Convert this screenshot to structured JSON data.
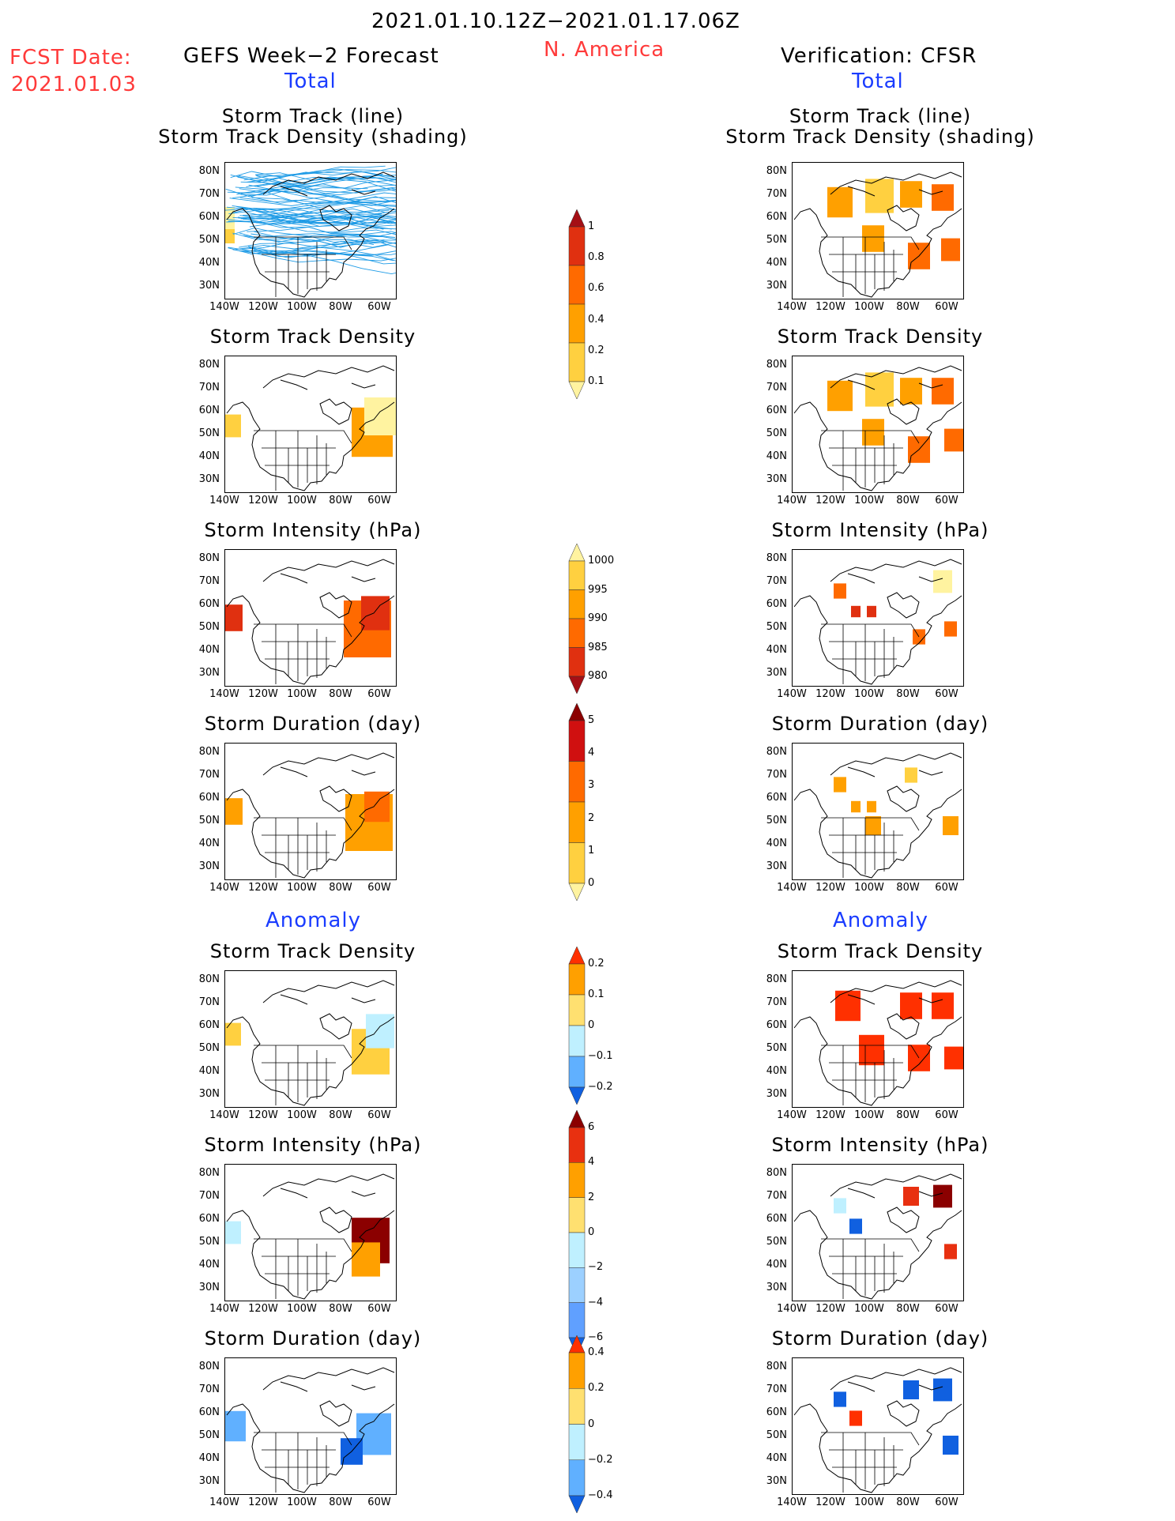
{
  "header": {
    "period": "2021.01.10.12Z−2021.01.17.06Z",
    "region": "N. America",
    "fcst_label": "FCST Date:",
    "fcst_date": "2021.01.03",
    "left_title": "GEFS Week−2 Forecast",
    "right_title": "Verification: CFSR",
    "total_label": "Total",
    "anomaly_label": "Anomaly"
  },
  "panel_titles": {
    "track_line": "Storm Track (line)",
    "track_shading": "Storm Track Density (shading)",
    "density": "Storm Track Density",
    "intensity": "Storm Intensity (hPa)",
    "duration": "Storm Duration (day)"
  },
  "axes": {
    "lat_labels": [
      "80N",
      "70N",
      "60N",
      "50N",
      "40N",
      "30N"
    ],
    "lon_labels": [
      "140W",
      "120W",
      "100W",
      "80W",
      "60W"
    ]
  },
  "colorbars": [
    {
      "name": "total-density",
      "labels": [
        "1",
        "0.8",
        "0.6",
        "0.4",
        "0.2",
        "0.1"
      ],
      "colors": [
        "#a50f15",
        "#e03010",
        "#ff6a00",
        "#ffa000",
        "#ffd040",
        "#fff3a0"
      ]
    },
    {
      "name": "total-intensity",
      "labels": [
        "1000",
        "995",
        "990",
        "985",
        "980"
      ],
      "colors": [
        "#fff3a0",
        "#ffd040",
        "#ffa000",
        "#ff6a00",
        "#e03010",
        "#a50f15"
      ]
    },
    {
      "name": "total-duration",
      "labels": [
        "5",
        "4",
        "3",
        "2",
        "1",
        "0"
      ],
      "colors": [
        "#8b0000",
        "#d01010",
        "#ff6a00",
        "#ffa000",
        "#ffd040",
        "#fff3a0"
      ]
    },
    {
      "name": "anom-density",
      "labels": [
        "0.2",
        "0.1",
        "0",
        "−0.1",
        "−0.2"
      ],
      "colors": [
        "#ff3000",
        "#ffa000",
        "#ffe070",
        "#bff0ff",
        "#60b0ff",
        "#1060e0"
      ]
    },
    {
      "name": "anom-intensity",
      "labels": [
        "6",
        "4",
        "2",
        "0",
        "−2",
        "−4",
        "−6"
      ],
      "colors": [
        "#8b0000",
        "#e83010",
        "#ffa000",
        "#ffe070",
        "#bff0ff",
        "#9cd0ff",
        "#60a0ff",
        "#1060e0"
      ]
    },
    {
      "name": "anom-duration",
      "labels": [
        "0.4",
        "0.2",
        "0",
        "−0.2",
        "−0.4"
      ],
      "colors": [
        "#ff3000",
        "#ffa000",
        "#ffe070",
        "#bff0ff",
        "#60b0ff",
        "#1060e0"
      ]
    }
  ]
}
